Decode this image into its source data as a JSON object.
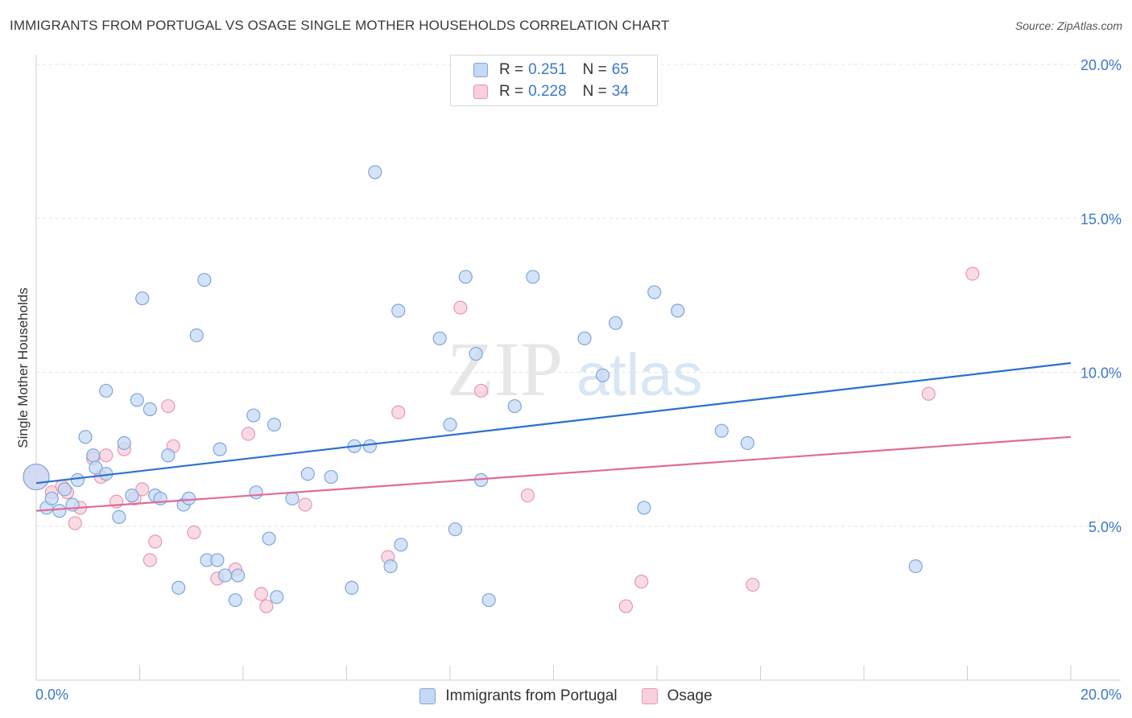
{
  "title": "IMMIGRANTS FROM PORTUGAL VS OSAGE SINGLE MOTHER HOUSEHOLDS CORRELATION CHART",
  "source": "Source: ZipAtlas.com",
  "watermark": {
    "zip": "ZIP",
    "atlas": "atlas"
  },
  "legend": {
    "rows": [
      {
        "r_label": "R =",
        "r_value": "0.251",
        "n_label": "N =",
        "n_value": "65"
      },
      {
        "r_label": "R =",
        "r_value": "0.228",
        "n_label": "N =",
        "n_value": "34"
      }
    ]
  },
  "colors": {
    "portugal_fill": "#c5d9f4",
    "portugal_stroke": "#7ea6dc",
    "portugal_line": "#2a6fd0",
    "osage_fill": "#f8cfdc",
    "osage_stroke": "#e896b2",
    "osage_line": "#e06b96",
    "tick_label": "#3b78c9",
    "grid": "#e2e2e2"
  },
  "chart_data": {
    "type": "scatter",
    "title": "IMMIGRANTS FROM PORTUGAL VS OSAGE SINGLE MOTHER HOUSEHOLDS CORRELATION CHART",
    "xlabel": "",
    "ylabel": "Single Mother Households",
    "xlim": [
      0,
      20
    ],
    "ylim": [
      0,
      20
    ],
    "x_tick_labels": [
      "0.0%",
      "20.0%"
    ],
    "y_ticks": [
      5,
      10,
      15,
      20
    ],
    "y_tick_labels": [
      "5.0%",
      "10.0%",
      "15.0%",
      "20.0%"
    ],
    "grid": true,
    "legend_position": "top-center",
    "series": [
      {
        "name": "Immigrants from Portugal",
        "r": 0.251,
        "n": 65,
        "trend": {
          "x": [
            0,
            20
          ],
          "y": [
            6.4,
            10.3
          ]
        },
        "points": [
          [
            0.0,
            6.6
          ],
          [
            0.2,
            5.6
          ],
          [
            0.3,
            5.9
          ],
          [
            0.45,
            5.5
          ],
          [
            0.55,
            6.2
          ],
          [
            0.7,
            5.7
          ],
          [
            0.8,
            6.5
          ],
          [
            0.95,
            7.9
          ],
          [
            1.1,
            7.3
          ],
          [
            1.15,
            6.9
          ],
          [
            1.35,
            6.7
          ],
          [
            1.35,
            9.4
          ],
          [
            1.6,
            5.3
          ],
          [
            1.7,
            7.7
          ],
          [
            1.85,
            6.0
          ],
          [
            1.95,
            9.1
          ],
          [
            2.05,
            12.4
          ],
          [
            2.2,
            8.8
          ],
          [
            2.3,
            6.0
          ],
          [
            2.4,
            5.9
          ],
          [
            2.55,
            7.3
          ],
          [
            2.75,
            3.0
          ],
          [
            2.85,
            5.7
          ],
          [
            2.95,
            5.9
          ],
          [
            3.1,
            11.2
          ],
          [
            3.25,
            13.0
          ],
          [
            3.3,
            3.9
          ],
          [
            3.5,
            3.9
          ],
          [
            3.55,
            7.5
          ],
          [
            3.65,
            3.4
          ],
          [
            3.85,
            2.6
          ],
          [
            3.9,
            3.4
          ],
          [
            4.2,
            8.6
          ],
          [
            4.25,
            6.1
          ],
          [
            4.5,
            4.6
          ],
          [
            4.6,
            8.3
          ],
          [
            4.65,
            2.7
          ],
          [
            4.95,
            5.9
          ],
          [
            5.25,
            6.7
          ],
          [
            5.7,
            6.6
          ],
          [
            6.1,
            3.0
          ],
          [
            6.15,
            7.6
          ],
          [
            6.45,
            7.6
          ],
          [
            6.55,
            16.5
          ],
          [
            6.85,
            3.7
          ],
          [
            7.0,
            12.0
          ],
          [
            7.05,
            4.4
          ],
          [
            7.8,
            11.1
          ],
          [
            8.0,
            8.3
          ],
          [
            8.1,
            4.9
          ],
          [
            8.3,
            13.1
          ],
          [
            8.5,
            10.6
          ],
          [
            8.6,
            6.5
          ],
          [
            8.75,
            2.6
          ],
          [
            9.25,
            8.9
          ],
          [
            9.6,
            13.1
          ],
          [
            10.6,
            11.1
          ],
          [
            10.95,
            9.9
          ],
          [
            11.2,
            11.6
          ],
          [
            11.75,
            5.6
          ],
          [
            11.95,
            12.6
          ],
          [
            12.4,
            12.0
          ],
          [
            13.25,
            8.1
          ],
          [
            13.75,
            7.7
          ],
          [
            17.0,
            3.7
          ]
        ]
      },
      {
        "name": "Osage",
        "r": 0.228,
        "n": 34,
        "trend": {
          "x": [
            0,
            20
          ],
          "y": [
            5.5,
            7.9
          ]
        },
        "points": [
          [
            0.0,
            6.6
          ],
          [
            0.3,
            6.1
          ],
          [
            0.5,
            6.3
          ],
          [
            0.6,
            6.1
          ],
          [
            0.75,
            5.1
          ],
          [
            0.85,
            5.6
          ],
          [
            1.1,
            7.2
          ],
          [
            1.25,
            6.6
          ],
          [
            1.35,
            7.3
          ],
          [
            1.55,
            5.8
          ],
          [
            1.7,
            7.5
          ],
          [
            1.9,
            5.9
          ],
          [
            2.05,
            6.2
          ],
          [
            2.2,
            3.9
          ],
          [
            2.3,
            4.5
          ],
          [
            2.55,
            8.9
          ],
          [
            2.65,
            7.6
          ],
          [
            3.05,
            4.8
          ],
          [
            3.5,
            3.3
          ],
          [
            3.85,
            3.6
          ],
          [
            4.1,
            8.0
          ],
          [
            4.35,
            2.8
          ],
          [
            4.45,
            2.4
          ],
          [
            5.2,
            5.7
          ],
          [
            6.8,
            4.0
          ],
          [
            7.0,
            8.7
          ],
          [
            8.2,
            12.1
          ],
          [
            8.6,
            9.4
          ],
          [
            9.5,
            6.0
          ],
          [
            11.4,
            2.4
          ],
          [
            11.7,
            3.2
          ],
          [
            13.85,
            3.1
          ],
          [
            17.25,
            9.3
          ],
          [
            18.1,
            13.2
          ]
        ]
      }
    ]
  },
  "bottom_legend": [
    {
      "label": "Immigrants from Portugal"
    },
    {
      "label": "Osage"
    }
  ]
}
